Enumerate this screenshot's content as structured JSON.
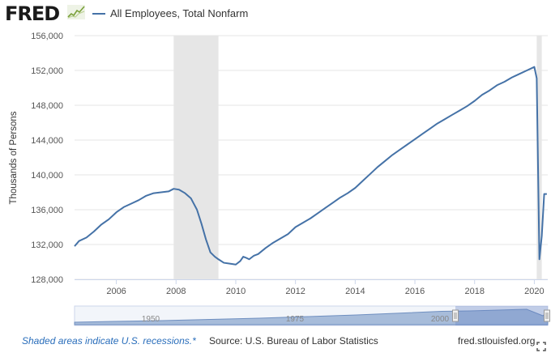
{
  "header": {
    "logo_text": "FRED",
    "legend_label": "All Employees, Total Nonfarm",
    "series_color": "#4572a7"
  },
  "footer": {
    "recession_note": "Shaded areas indicate U.S. recessions.*",
    "source": "Source: U.S. Bureau of Labor Statistics",
    "site": "fred.stlouisfed.org"
  },
  "navigator": {
    "labels": [
      "1950",
      "1975",
      "2000"
    ]
  },
  "chart_data": {
    "type": "line",
    "title": "",
    "xlabel": "",
    "ylabel": "Thousands of Persons",
    "xlim": [
      2004.6,
      2020.45
    ],
    "ylim": [
      128000,
      156000
    ],
    "x_ticks": [
      2006,
      2008,
      2010,
      2012,
      2014,
      2016,
      2018,
      2020
    ],
    "x_tick_labels": [
      "2006",
      "2008",
      "2010",
      "2012",
      "2014",
      "2016",
      "2018",
      "2020"
    ],
    "y_ticks": [
      128000,
      132000,
      136000,
      140000,
      144000,
      148000,
      152000,
      156000
    ],
    "y_tick_labels": [
      "128,000",
      "132,000",
      "136,000",
      "140,000",
      "144,000",
      "148,000",
      "152,000",
      "156,000"
    ],
    "grid": "horizontal",
    "recessions": [
      [
        2007.92,
        2009.42
      ],
      [
        2020.08,
        2020.25
      ]
    ],
    "series": [
      {
        "name": "All Employees, Total Nonfarm",
        "x": [
          2004.6,
          2004.75,
          2005.0,
          2005.25,
          2005.5,
          2005.75,
          2006.0,
          2006.25,
          2006.5,
          2006.75,
          2007.0,
          2007.25,
          2007.5,
          2007.75,
          2007.92,
          2008.1,
          2008.3,
          2008.5,
          2008.7,
          2008.85,
          2009.0,
          2009.15,
          2009.3,
          2009.42,
          2009.6,
          2009.8,
          2010.0,
          2010.15,
          2010.25,
          2010.33,
          2010.45,
          2010.6,
          2010.75,
          2011.0,
          2011.25,
          2011.5,
          2011.75,
          2012.0,
          2012.25,
          2012.5,
          2012.75,
          2013.0,
          2013.25,
          2013.5,
          2013.75,
          2014.0,
          2014.25,
          2014.5,
          2014.75,
          2015.0,
          2015.25,
          2015.5,
          2015.75,
          2016.0,
          2016.25,
          2016.5,
          2016.75,
          2017.0,
          2017.25,
          2017.5,
          2017.75,
          2018.0,
          2018.25,
          2018.5,
          2018.75,
          2019.0,
          2019.25,
          2019.5,
          2019.75,
          2020.0,
          2020.08,
          2020.17,
          2020.25,
          2020.33,
          2020.42
        ],
        "values": [
          131800,
          132400,
          132800,
          133500,
          134300,
          134900,
          135700,
          136300,
          136700,
          137100,
          137600,
          137900,
          138000,
          138100,
          138400,
          138300,
          137900,
          137300,
          136000,
          134400,
          132600,
          131100,
          130600,
          130300,
          129900,
          129800,
          129700,
          130100,
          130600,
          130500,
          130300,
          130700,
          130900,
          131600,
          132200,
          132700,
          133200,
          134000,
          134500,
          135000,
          135600,
          136200,
          136800,
          137400,
          137900,
          138500,
          139300,
          140100,
          140900,
          141600,
          142300,
          142900,
          143500,
          144100,
          144700,
          145300,
          145900,
          146400,
          146900,
          147400,
          147900,
          148500,
          149200,
          149700,
          150300,
          150700,
          151200,
          151600,
          152000,
          152400,
          151100,
          130300,
          133000,
          137800,
          137800
        ]
      }
    ]
  }
}
